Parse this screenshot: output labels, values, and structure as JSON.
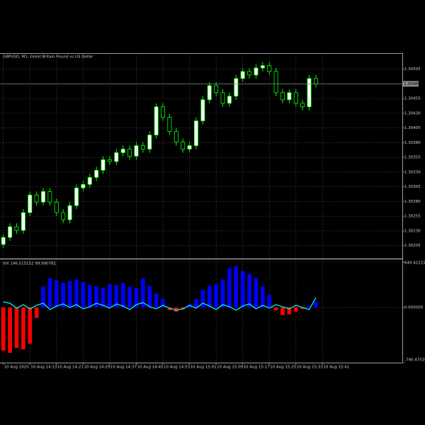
{
  "chart_data": [
    {
      "type": "candlestick",
      "title": "GBPUSD, M1:  Great Britain Pound vs US Dollar",
      "x": [
        0,
        2,
        4,
        6,
        8,
        10,
        12,
        14,
        16,
        18,
        20,
        22,
        24,
        26,
        28,
        30,
        32,
        34,
        36,
        38,
        40,
        42,
        44,
        46,
        48,
        50,
        52,
        54,
        56,
        58,
        60,
        62,
        64,
        66,
        68,
        70,
        72,
        74,
        76,
        78,
        80,
        82,
        84,
        86,
        88,
        90,
        92,
        94
      ],
      "open": [
        1.30207,
        1.30219,
        1.30237,
        1.30231,
        1.30261,
        1.30291,
        1.30279,
        1.30297,
        1.30279,
        1.30261,
        1.30249,
        1.30273,
        1.30303,
        1.30309,
        1.30321,
        1.30333,
        1.30351,
        1.30348,
        1.30363,
        1.30369,
        1.30357,
        1.30375,
        1.30369,
        1.30393,
        1.30441,
        1.30423,
        1.30399,
        1.30381,
        1.30369,
        1.30375,
        1.30417,
        1.30453,
        1.30477,
        1.30465,
        1.30447,
        1.30459,
        1.30489,
        1.30501,
        1.30495,
        1.30507,
        1.30511,
        1.30501,
        1.30465,
        1.30453,
        1.30465,
        1.30447,
        1.30441,
        1.30489
      ],
      "high": [
        1.30225,
        1.30243,
        1.30243,
        1.30267,
        1.30297,
        1.30297,
        1.30303,
        1.30303,
        1.30285,
        1.30267,
        1.30279,
        1.30309,
        1.30315,
        1.30327,
        1.30339,
        1.30357,
        1.30357,
        1.30369,
        1.30375,
        1.30375,
        1.30381,
        1.30381,
        1.30399,
        1.30447,
        1.30447,
        1.30429,
        1.30405,
        1.30387,
        1.30381,
        1.30423,
        1.30459,
        1.30483,
        1.30483,
        1.30471,
        1.30465,
        1.30495,
        1.30507,
        1.30507,
        1.30513,
        1.30517,
        1.30517,
        1.30507,
        1.30471,
        1.30471,
        1.30471,
        1.30453,
        1.30495,
        1.30495
      ],
      "low": [
        1.30201,
        1.30213,
        1.30225,
        1.30225,
        1.30255,
        1.30273,
        1.30273,
        1.30273,
        1.30255,
        1.30243,
        1.30243,
        1.30267,
        1.30297,
        1.30303,
        1.30315,
        1.30327,
        1.30342,
        1.30342,
        1.30357,
        1.30351,
        1.30351,
        1.30363,
        1.30363,
        1.30387,
        1.30417,
        1.30393,
        1.30375,
        1.30363,
        1.30363,
        1.30369,
        1.30411,
        1.30447,
        1.30459,
        1.30441,
        1.30441,
        1.30453,
        1.30483,
        1.30489,
        1.30489,
        1.30501,
        1.30495,
        1.30459,
        1.30447,
        1.30447,
        1.30441,
        1.30435,
        1.30435,
        1.30474
      ],
      "close": [
        1.30219,
        1.30237,
        1.30231,
        1.30261,
        1.30291,
        1.30279,
        1.30297,
        1.30279,
        1.30261,
        1.30249,
        1.30273,
        1.30303,
        1.30309,
        1.30321,
        1.30333,
        1.30351,
        1.30348,
        1.30363,
        1.30369,
        1.30357,
        1.30375,
        1.30369,
        1.30393,
        1.30441,
        1.30423,
        1.30399,
        1.30381,
        1.30369,
        1.30375,
        1.30417,
        1.30453,
        1.30477,
        1.30465,
        1.30447,
        1.30459,
        1.30489,
        1.30501,
        1.30495,
        1.30507,
        1.30511,
        1.30501,
        1.30465,
        1.30453,
        1.30465,
        1.30447,
        1.30441,
        1.30489,
        1.3048
      ],
      "up_color": "#ffffff",
      "down_color": "#000000",
      "wick_color": "#00ff00",
      "xlim": [
        -1,
        120
      ],
      "ylim": [
        1.30183,
        1.30531
      ],
      "yticks": [
        1.30505,
        1.30455,
        {
          "value": 1.3043,
          "label": "1.30430"
        },
        1.30405,
        {
          "value": 1.3038,
          "label": "1.30380"
        },
        1.30355,
        {
          "value": 1.3033,
          "label": "1.30330"
        },
        1.30305,
        {
          "value": 1.3028,
          "label": "1.30280"
        },
        1.30255,
        {
          "value": 1.3023,
          "label": "1.30230"
        },
        1.30205
      ],
      "bid": {
        "value": 1.3048,
        "label": "1.30480"
      },
      "grid": true
    },
    {
      "type": "bar",
      "title": "IIIX 146.515152 99.990781",
      "x": [
        0,
        2,
        4,
        6,
        8,
        10,
        12,
        14,
        16,
        18,
        20,
        22,
        24,
        26,
        28,
        30,
        32,
        34,
        36,
        38,
        40,
        42,
        44,
        46,
        48,
        50,
        52,
        54,
        56,
        58,
        60,
        62,
        64,
        66,
        68,
        70,
        72,
        74,
        76,
        78,
        80,
        82,
        84,
        86,
        88,
        90,
        92,
        94
      ],
      "values": [
        -620,
        -650,
        -580,
        -600,
        -520,
        -150,
        300,
        420,
        390,
        350,
        380,
        400,
        360,
        320,
        300,
        280,
        330,
        320,
        350,
        300,
        280,
        420,
        310,
        200,
        120,
        -40,
        -60,
        -30,
        50,
        120,
        250,
        310,
        330,
        400,
        560,
        590,
        520,
        480,
        420,
        300,
        180,
        -40,
        -110,
        -100,
        -60,
        -20,
        20,
        80
      ],
      "up_color": "#0000ff",
      "down_color": "#ff0000",
      "line": {
        "color": "#00ffff",
        "values": [
          80,
          60,
          -10,
          40,
          -20,
          30,
          60,
          -30,
          20,
          50,
          0,
          40,
          -20,
          10,
          60,
          30,
          -10,
          50,
          20,
          -30,
          40,
          70,
          10,
          -20,
          30,
          -10,
          -40,
          -20,
          30,
          -10,
          60,
          20,
          -30,
          40,
          10,
          -40,
          20,
          50,
          -20,
          30,
          -10,
          40,
          10,
          -20,
          30,
          0,
          -30,
          140
        ]
      },
      "xlim": [
        -1,
        120
      ],
      "xticks": [
        {
          "value": 0,
          "label": "10 Aug 2020"
        },
        {
          "value": 8,
          "label": "10 Aug 14:13"
        },
        {
          "value": 16,
          "label": "10 Aug 14:21"
        },
        {
          "value": 24,
          "label": "10 Aug 14:29"
        },
        {
          "value": 32,
          "label": "10 Aug 14:37"
        },
        {
          "value": 40,
          "label": "10 Aug 14:45"
        },
        {
          "value": 48,
          "label": "10 Aug 14:53"
        },
        {
          "value": 56,
          "label": "10 Aug 15:01"
        },
        {
          "value": 64,
          "label": "10 Aug 15:09"
        },
        {
          "value": 72,
          "label": "10 Aug 15:17"
        },
        {
          "value": 80,
          "label": "10 Aug 15:25"
        },
        {
          "value": 88,
          "label": "10 Aug 15:33"
        },
        {
          "value": 96,
          "label": "10 Aug 15:41"
        }
      ],
      "ylim": [
        -791,
        680
      ],
      "yticks": [
        649.422214,
        {
          "value": 0,
          "label": "0.000000"
        },
        -790.475399
      ],
      "grid": true
    }
  ]
}
